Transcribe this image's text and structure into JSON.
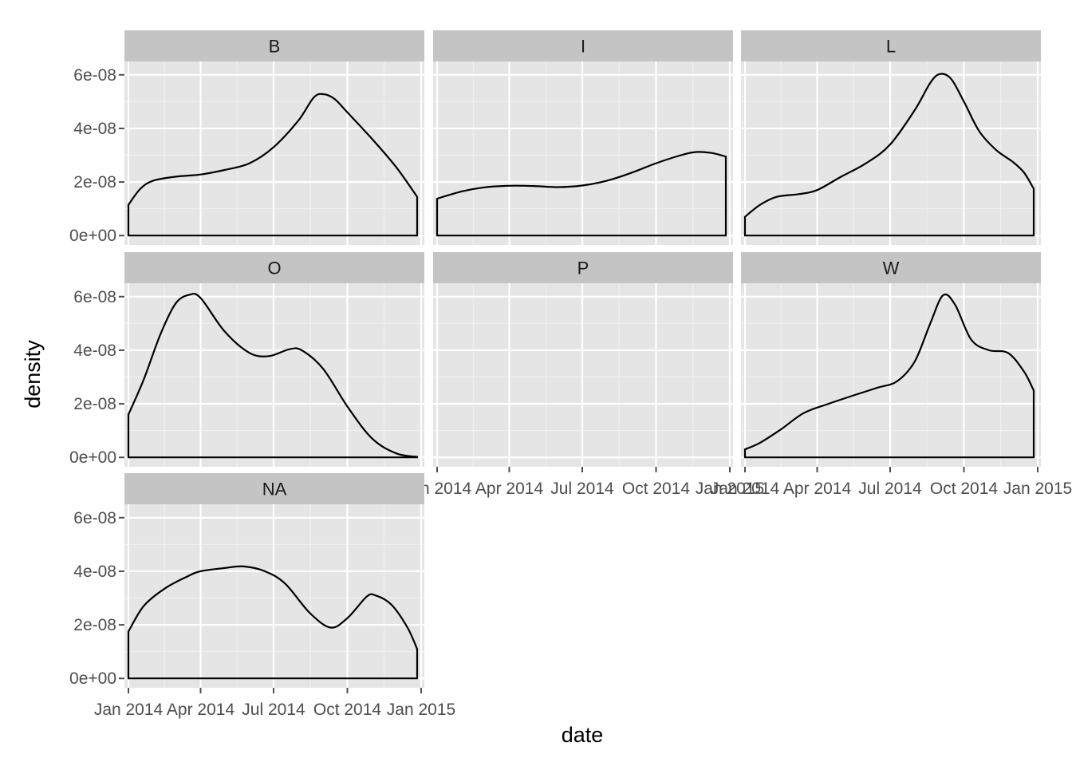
{
  "chart_data": {
    "type": "area",
    "geom": "density",
    "xlabel": "date",
    "ylabel": "density",
    "x_ticks": [
      "Jan 2014",
      "Apr 2014",
      "Jul 2014",
      "Oct 2014",
      "Jan 2015"
    ],
    "x_tick_values": [
      "2014-01-01",
      "2014-04-01",
      "2014-07-01",
      "2014-10-01",
      "2015-01-01"
    ],
    "xlim": [
      "2013-12-27",
      "2015-01-05"
    ],
    "y_ticks": [
      "0e+00",
      "2e-08",
      "4e-08",
      "6e-08"
    ],
    "y_tick_values": [
      0,
      2e-08,
      4e-08,
      6e-08
    ],
    "ylim": [
      -3.5e-09,
      6.5e-08
    ],
    "grid": true,
    "facet_layout": {
      "columns": 3,
      "rows": 3
    },
    "facets": [
      {
        "label": "B",
        "points": [
          [
            "2014-01-01",
            1.15e-08
          ],
          [
            "2014-01-16",
            1.75e-08
          ],
          [
            "2014-02-01",
            2.05e-08
          ],
          [
            "2014-03-01",
            2.2e-08
          ],
          [
            "2014-04-01",
            2.28e-08
          ],
          [
            "2014-05-01",
            2.45e-08
          ],
          [
            "2014-06-01",
            2.7e-08
          ],
          [
            "2014-07-01",
            3.3e-08
          ],
          [
            "2014-08-01",
            4.3e-08
          ],
          [
            "2014-08-20",
            5.15e-08
          ],
          [
            "2014-09-01",
            5.28e-08
          ],
          [
            "2014-09-15",
            5.1e-08
          ],
          [
            "2014-10-01",
            4.6e-08
          ],
          [
            "2014-11-01",
            3.6e-08
          ],
          [
            "2014-12-01",
            2.55e-08
          ],
          [
            "2014-12-27",
            1.45e-08
          ]
        ]
      },
      {
        "label": "I",
        "points": [
          [
            "2014-01-01",
            1.38e-08
          ],
          [
            "2014-02-01",
            1.65e-08
          ],
          [
            "2014-03-01",
            1.8e-08
          ],
          [
            "2014-04-01",
            1.86e-08
          ],
          [
            "2014-05-01",
            1.85e-08
          ],
          [
            "2014-06-01",
            1.81e-08
          ],
          [
            "2014-07-01",
            1.87e-08
          ],
          [
            "2014-08-01",
            2.05e-08
          ],
          [
            "2014-09-01",
            2.35e-08
          ],
          [
            "2014-10-01",
            2.7e-08
          ],
          [
            "2014-11-01",
            3e-08
          ],
          [
            "2014-11-20",
            3.12e-08
          ],
          [
            "2014-12-10",
            3.08e-08
          ],
          [
            "2014-12-27",
            2.95e-08
          ]
        ]
      },
      {
        "label": "L",
        "points": [
          [
            "2014-01-01",
            7e-09
          ],
          [
            "2014-01-20",
            1.15e-08
          ],
          [
            "2014-02-10",
            1.45e-08
          ],
          [
            "2014-03-10",
            1.55e-08
          ],
          [
            "2014-04-01",
            1.7e-08
          ],
          [
            "2014-05-01",
            2.2e-08
          ],
          [
            "2014-06-01",
            2.7e-08
          ],
          [
            "2014-07-01",
            3.4e-08
          ],
          [
            "2014-08-01",
            4.7e-08
          ],
          [
            "2014-08-20",
            5.7e-08
          ],
          [
            "2014-09-01",
            6.03e-08
          ],
          [
            "2014-09-15",
            5.85e-08
          ],
          [
            "2014-10-01",
            5e-08
          ],
          [
            "2014-10-20",
            3.9e-08
          ],
          [
            "2014-11-10",
            3.2e-08
          ],
          [
            "2014-12-01",
            2.75e-08
          ],
          [
            "2014-12-15",
            2.35e-08
          ],
          [
            "2014-12-27",
            1.75e-08
          ]
        ]
      },
      {
        "label": "O",
        "points": [
          [
            "2014-01-01",
            1.6e-08
          ],
          [
            "2014-01-20",
            2.9e-08
          ],
          [
            "2014-02-10",
            4.6e-08
          ],
          [
            "2014-03-01",
            5.75e-08
          ],
          [
            "2014-03-18",
            6.07e-08
          ],
          [
            "2014-04-01",
            5.95e-08
          ],
          [
            "2014-05-01",
            4.7e-08
          ],
          [
            "2014-06-01",
            3.9e-08
          ],
          [
            "2014-06-25",
            3.78e-08
          ],
          [
            "2014-07-20",
            4.03e-08
          ],
          [
            "2014-08-05",
            4e-08
          ],
          [
            "2014-09-01",
            3.3e-08
          ],
          [
            "2014-10-01",
            1.9e-08
          ],
          [
            "2014-11-01",
            7e-09
          ],
          [
            "2014-12-01",
            1.5e-09
          ],
          [
            "2014-12-27",
            2e-10
          ]
        ]
      },
      {
        "label": "P",
        "points": []
      },
      {
        "label": "W",
        "points": [
          [
            "2014-01-01",
            3e-09
          ],
          [
            "2014-01-20",
            5.5e-09
          ],
          [
            "2014-02-15",
            1.05e-08
          ],
          [
            "2014-03-15",
            1.65e-08
          ],
          [
            "2014-04-15",
            2e-08
          ],
          [
            "2014-05-15",
            2.3e-08
          ],
          [
            "2014-06-15",
            2.6e-08
          ],
          [
            "2014-07-10",
            2.85e-08
          ],
          [
            "2014-08-01",
            3.6e-08
          ],
          [
            "2014-08-20",
            5e-08
          ],
          [
            "2014-09-05",
            6.05e-08
          ],
          [
            "2014-09-20",
            5.7e-08
          ],
          [
            "2014-10-10",
            4.4e-08
          ],
          [
            "2014-11-01",
            4e-08
          ],
          [
            "2014-11-25",
            3.9e-08
          ],
          [
            "2014-12-15",
            3.2e-08
          ],
          [
            "2014-12-27",
            2.5e-08
          ]
        ]
      },
      {
        "label": "NA",
        "points": [
          [
            "2014-01-01",
            1.75e-08
          ],
          [
            "2014-01-20",
            2.7e-08
          ],
          [
            "2014-02-15",
            3.35e-08
          ],
          [
            "2014-03-15",
            3.8e-08
          ],
          [
            "2014-04-01",
            4e-08
          ],
          [
            "2014-05-01",
            4.12e-08
          ],
          [
            "2014-05-25",
            4.18e-08
          ],
          [
            "2014-06-20",
            4e-08
          ],
          [
            "2014-07-15",
            3.55e-08
          ],
          [
            "2014-08-15",
            2.45e-08
          ],
          [
            "2014-09-10",
            1.9e-08
          ],
          [
            "2014-10-01",
            2.25e-08
          ],
          [
            "2014-10-25",
            3.05e-08
          ],
          [
            "2014-11-05",
            3.1e-08
          ],
          [
            "2014-11-25",
            2.75e-08
          ],
          [
            "2014-12-15",
            1.9e-08
          ],
          [
            "2014-12-27",
            1.1e-08
          ]
        ]
      }
    ]
  }
}
